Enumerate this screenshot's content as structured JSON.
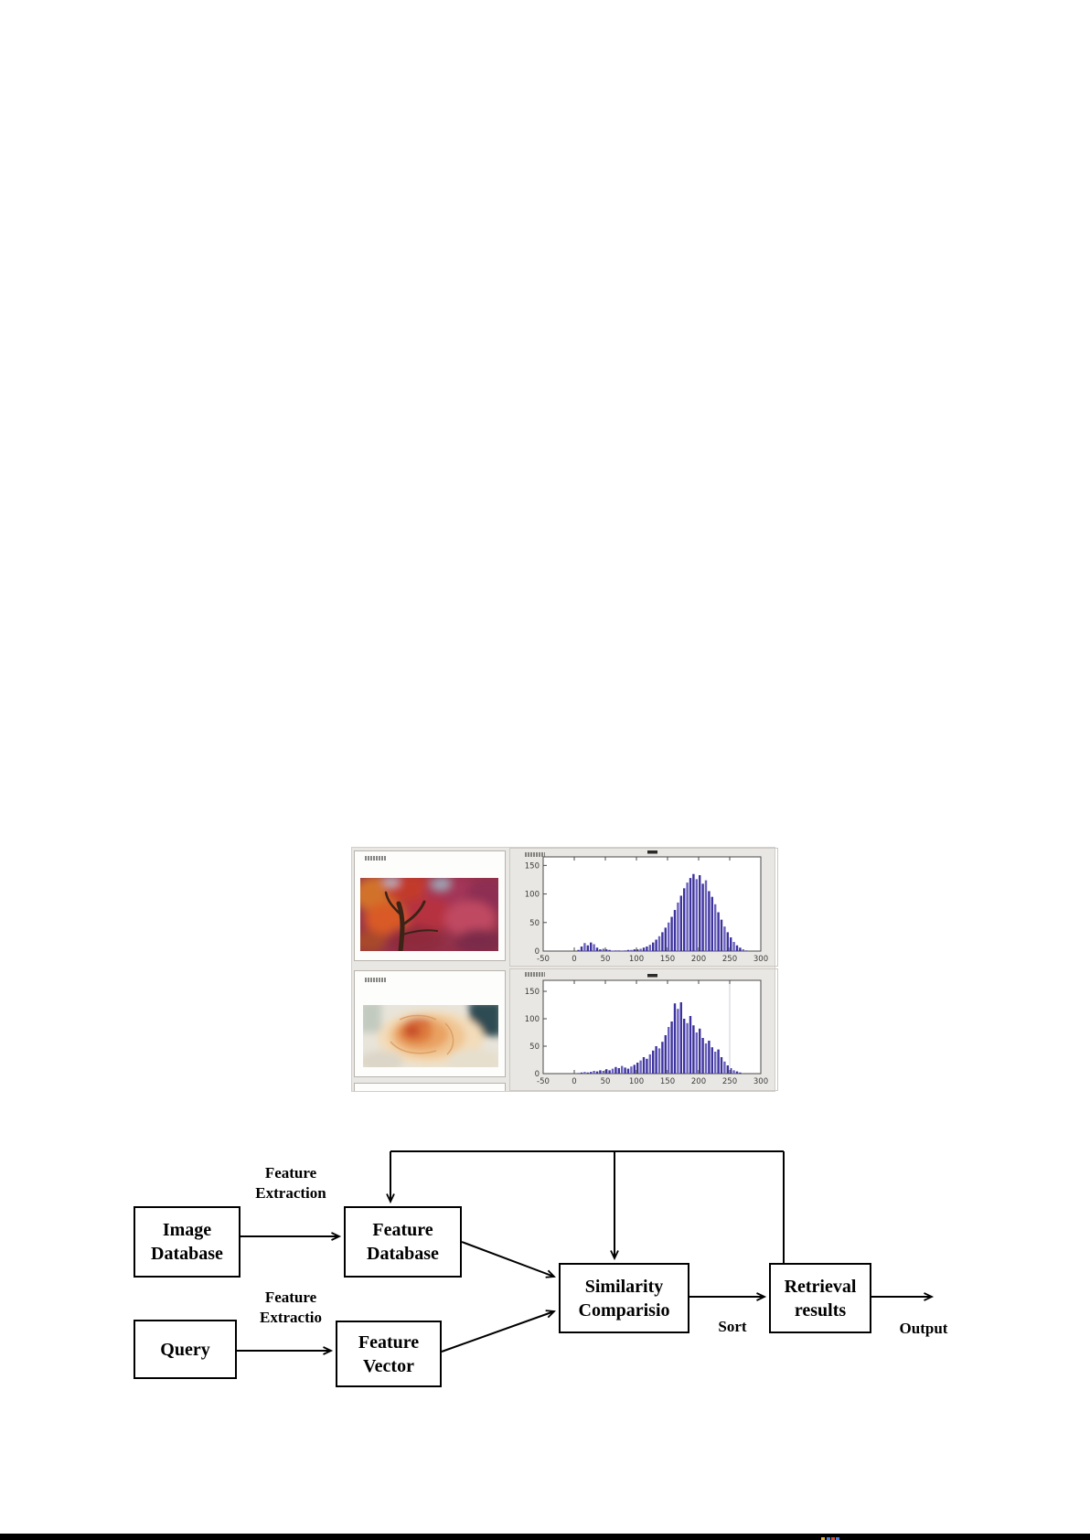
{
  "page": {
    "background": "#ffffff",
    "bottom_bar_color": "#000000"
  },
  "figure": {
    "background": "#e9e7e3",
    "panels": [
      {
        "id": "autumn-photo-panel",
        "alt": "autumn-foliage-photo",
        "title_legible": false
      },
      {
        "id": "autumn-histogram-panel",
        "alt": "autumn-intensity-histogram",
        "title_legible": false
      },
      {
        "id": "rose-photo-panel",
        "alt": "cream-rose-photo",
        "title_legible": false
      },
      {
        "id": "rose-histogram-panel",
        "alt": "rose-intensity-histogram",
        "title_legible": false
      }
    ]
  },
  "chart_data": [
    {
      "type": "bar",
      "subtype": "histogram",
      "title": "",
      "xlabel": "",
      "ylabel": "",
      "xlim": [
        -50,
        300
      ],
      "ylim": [
        0,
        165
      ],
      "x_ticks": [
        -50,
        0,
        50,
        100,
        150,
        200,
        250,
        300
      ],
      "y_ticks": [
        0,
        50,
        100,
        150
      ],
      "bin_start": 0,
      "bin_width": 5,
      "bar_color": "#3d339e",
      "bar_color_light": "#6a61bd",
      "grid": false,
      "legend": "none",
      "values": [
        0,
        2,
        8,
        14,
        10,
        15,
        12,
        6,
        3,
        4,
        3,
        2,
        1,
        1,
        1,
        1,
        1,
        2,
        2,
        3,
        3,
        4,
        6,
        8,
        11,
        15,
        20,
        26,
        33,
        41,
        50,
        60,
        72,
        85,
        97,
        110,
        120,
        128,
        135,
        126,
        133,
        118,
        124,
        105,
        95,
        82,
        68,
        55,
        43,
        33,
        24,
        16,
        10,
        6,
        3,
        1
      ]
    },
    {
      "type": "bar",
      "subtype": "histogram",
      "title": "",
      "xlabel": "",
      "ylabel": "",
      "xlim": [
        -50,
        300
      ],
      "ylim": [
        0,
        170
      ],
      "x_ticks": [
        -50,
        0,
        50,
        100,
        150,
        200,
        250,
        300
      ],
      "y_ticks": [
        0,
        50,
        100,
        150
      ],
      "bin_start": 0,
      "bin_width": 5,
      "bar_color": "#3d339e",
      "bar_color_light": "#6a61bd",
      "grid": false,
      "legend": "none",
      "gap_line_x": 250,
      "values": [
        0,
        1,
        2,
        3,
        2,
        3,
        5,
        4,
        6,
        5,
        8,
        6,
        9,
        12,
        10,
        14,
        11,
        9,
        13,
        16,
        20,
        24,
        30,
        27,
        35,
        42,
        50,
        46,
        58,
        70,
        85,
        95,
        128,
        118,
        130,
        100,
        92,
        105,
        88,
        75,
        82,
        65,
        55,
        60,
        48,
        40,
        44,
        30,
        22,
        15,
        10,
        6,
        4,
        2,
        1,
        0
      ]
    }
  ],
  "diagram": {
    "boxes": [
      {
        "id": "image-database",
        "lines": [
          "Image",
          "Database"
        ]
      },
      {
        "id": "feature-database",
        "lines": [
          "Feature",
          "Database"
        ]
      },
      {
        "id": "similarity-comparison",
        "lines": [
          "Similarity",
          "Comparisio"
        ]
      },
      {
        "id": "retrieval-results",
        "lines": [
          "Retrieval",
          "results"
        ]
      },
      {
        "id": "query",
        "lines": [
          "Query"
        ]
      },
      {
        "id": "feature-vector",
        "lines": [
          "Feature",
          "Vector"
        ]
      }
    ],
    "labels": {
      "feature_extraction_top": {
        "lines": [
          "Feature",
          "Extraction"
        ]
      },
      "feature_extraction_bottom": {
        "lines": [
          "Feature",
          "Extractio"
        ]
      },
      "sort": "Sort",
      "output": "Output"
    }
  }
}
